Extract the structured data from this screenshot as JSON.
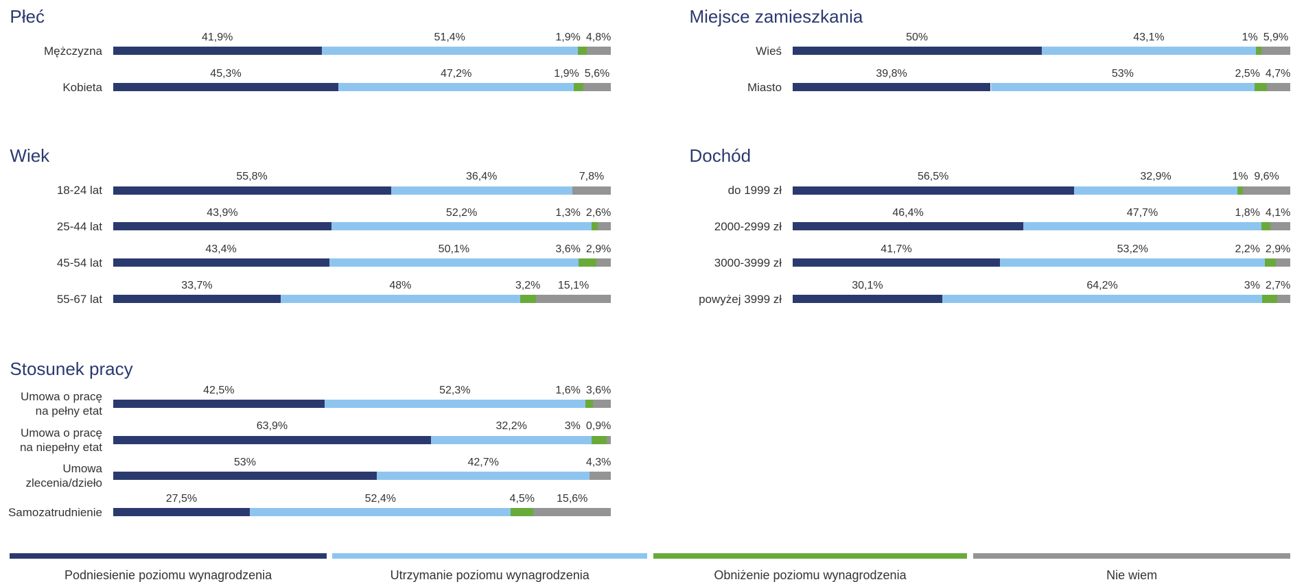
{
  "legend": [
    {
      "name": "Podniesienie poziomu wynagrodzenia",
      "color": "#2b3a6e"
    },
    {
      "name": "Utrzymanie poziomu wynagrodzenia",
      "color": "#8ec5ef"
    },
    {
      "name": "Obniżenie poziomu wynagrodzenia",
      "color": "#6aaa3a"
    },
    {
      "name": "Nie wiem",
      "color": "#949494"
    }
  ],
  "chart_data": [
    {
      "type": "bar",
      "title": "Płeć",
      "categories": [
        "Mężczyzna",
        "Kobieta"
      ],
      "series": [
        {
          "values": [
            41.9,
            45.3
          ],
          "value_labels": [
            "41,9%",
            "45,3%"
          ]
        },
        {
          "values": [
            51.4,
            47.2
          ],
          "value_labels": [
            "51,4%",
            "47,2%"
          ]
        },
        {
          "values": [
            1.9,
            1.9
          ],
          "value_labels": [
            "1,9%",
            "1,9%"
          ]
        },
        {
          "values": [
            4.8,
            5.6
          ],
          "value_labels": [
            "4,8%",
            "5,6%"
          ]
        }
      ]
    },
    {
      "type": "bar",
      "title": "Miejsce zamieszkania",
      "categories": [
        "Wieś",
        "Miasto"
      ],
      "series": [
        {
          "values": [
            50,
            39.8
          ],
          "value_labels": [
            "50%",
            "39,8%"
          ]
        },
        {
          "values": [
            43.1,
            53
          ],
          "value_labels": [
            "43,1%",
            "53%"
          ]
        },
        {
          "values": [
            1,
            2.5
          ],
          "value_labels": [
            "1%",
            "2,5%"
          ]
        },
        {
          "values": [
            5.9,
            4.7
          ],
          "value_labels": [
            "5,9%",
            "4,7%"
          ]
        }
      ]
    },
    {
      "type": "bar",
      "title": "Wiek",
      "categories": [
        "18-24 lat",
        "25-44 lat",
        "45-54 lat",
        "55-67 lat"
      ],
      "series": [
        {
          "values": [
            55.8,
            43.9,
            43.4,
            33.7
          ],
          "value_labels": [
            "55,8%",
            "43,9%",
            "43,4%",
            "33,7%"
          ]
        },
        {
          "values": [
            36.4,
            52.2,
            50.1,
            48
          ],
          "value_labels": [
            "36,4%",
            "52,2%",
            "50,1%",
            "48%"
          ]
        },
        {
          "values": [
            null,
            1.3,
            3.6,
            3.2
          ],
          "value_labels": [
            null,
            "1,3%",
            "3,6%",
            "3,2%"
          ]
        },
        {
          "values": [
            7.8,
            2.6,
            2.9,
            15.1
          ],
          "value_labels": [
            "7,8%",
            "2,6%",
            "2,9%",
            "15,1%"
          ]
        }
      ]
    },
    {
      "type": "bar",
      "title": "Dochód",
      "categories": [
        "do 1999 zł",
        "2000-2999 zł",
        "3000-3999 zł",
        "powyżej 3999 zł"
      ],
      "series": [
        {
          "values": [
            56.5,
            46.4,
            41.7,
            30.1
          ],
          "value_labels": [
            "56,5%",
            "46,4%",
            "41,7%",
            "30,1%"
          ]
        },
        {
          "values": [
            32.9,
            47.7,
            53.2,
            64.2
          ],
          "value_labels": [
            "32,9%",
            "47,7%",
            "53,2%",
            "64,2%"
          ]
        },
        {
          "values": [
            1,
            1.8,
            2.2,
            3
          ],
          "value_labels": [
            "1%",
            "1,8%",
            "2,2%",
            "3%"
          ]
        },
        {
          "values": [
            9.6,
            4.1,
            2.9,
            2.7
          ],
          "value_labels": [
            "9,6%",
            "4,1%",
            "2,9%",
            "2,7%"
          ]
        }
      ]
    },
    {
      "type": "bar",
      "title": "Stosunek pracy",
      "categories": [
        "Umowa o pracę\nna pełny etat",
        "Umowa o pracę\nna niepełny etat",
        "Umowa\nzlecenia/dzieło",
        "Samozatrudnienie"
      ],
      "series": [
        {
          "values": [
            42.5,
            63.9,
            53,
            27.5
          ],
          "value_labels": [
            "42,5%",
            "63,9%",
            "53%",
            "27,5%"
          ]
        },
        {
          "values": [
            52.3,
            32.2,
            42.7,
            52.4
          ],
          "value_labels": [
            "52,3%",
            "32,2%",
            "42,7%",
            "52,4%"
          ]
        },
        {
          "values": [
            1.6,
            3,
            null,
            4.5
          ],
          "value_labels": [
            "1,6%",
            "3%",
            null,
            "4,5%"
          ]
        },
        {
          "values": [
            3.6,
            0.9,
            4.3,
            15.6
          ],
          "value_labels": [
            "3,6%",
            "0,9%",
            "4,3%",
            "15,6%"
          ]
        }
      ]
    }
  ]
}
